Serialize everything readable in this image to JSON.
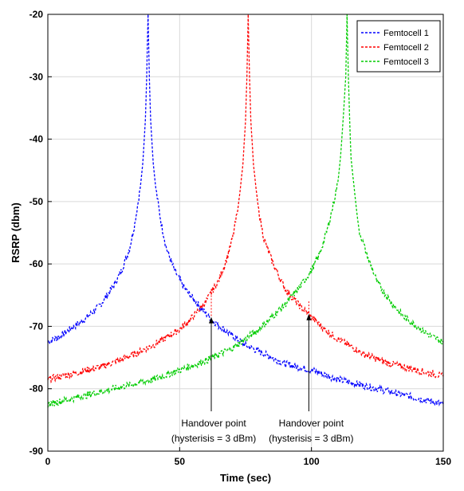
{
  "chart_data": {
    "type": "line",
    "xlabel": "Time (sec)",
    "ylabel": "RSRP (dbm)",
    "xlim": [
      0,
      150
    ],
    "ylim": [
      -90,
      -20
    ],
    "xticks": [
      "0",
      "50",
      "100",
      "150"
    ],
    "yticks": [
      "-20",
      "-30",
      "-40",
      "-50",
      "-60",
      "-70",
      "-80",
      "-90"
    ],
    "grid": true,
    "legend_position": "top-right",
    "line_style": "dashed",
    "noisy": true,
    "series": [
      {
        "name": "Femtocell 1",
        "color": "#0000ff",
        "x": [
          0,
          5,
          10,
          15,
          20,
          25,
          28,
          31,
          33,
          35,
          36,
          37,
          37.5,
          38,
          38.5,
          39,
          40,
          41,
          43,
          45,
          48,
          52,
          56,
          60,
          65,
          70,
          75,
          80,
          90,
          100,
          110,
          120,
          130,
          140,
          150
        ],
        "y": [
          -72.5,
          -71.5,
          -70,
          -68.5,
          -66.5,
          -63.5,
          -61,
          -57.5,
          -53.5,
          -48,
          -44,
          -37,
          -30,
          -20,
          -30,
          -37,
          -44,
          -48,
          -53.5,
          -57.5,
          -61,
          -64,
          -66,
          -68,
          -70,
          -71.5,
          -73,
          -74,
          -76,
          -77,
          -78.5,
          -79.5,
          -80.5,
          -81.5,
          -82.5
        ]
      },
      {
        "name": "Femtocell 2",
        "color": "#ff0000",
        "x": [
          0,
          10,
          20,
          30,
          40,
          50,
          55,
          60,
          65,
          68,
          70,
          72,
          73,
          74,
          75,
          75.5,
          76,
          76.5,
          77,
          78,
          79,
          80,
          82,
          85,
          90,
          95,
          100,
          105,
          110,
          120,
          130,
          140,
          150
        ],
        "y": [
          -78.5,
          -77.5,
          -76.5,
          -75,
          -73,
          -70.5,
          -68.5,
          -66,
          -62.5,
          -59,
          -56,
          -51.5,
          -48,
          -44,
          -37,
          -30,
          -20,
          -30,
          -37,
          -44,
          -48,
          -51.5,
          -56,
          -59.5,
          -64,
          -66.5,
          -68.5,
          -70.5,
          -72,
          -74.5,
          -76,
          -77,
          -78
        ]
      },
      {
        "name": "Femtocell 3",
        "color": "#00cc00",
        "x": [
          0,
          10,
          20,
          30,
          40,
          50,
          60,
          70,
          75,
          80,
          85,
          90,
          95,
          100,
          103,
          106,
          108,
          110,
          111,
          112,
          113,
          113.5,
          114,
          114.5,
          115,
          116,
          117,
          118,
          121,
          125,
          130,
          135,
          140,
          145,
          150
        ],
        "y": [
          -82.5,
          -81.5,
          -80.5,
          -79.5,
          -78.5,
          -77,
          -75.5,
          -73.5,
          -72,
          -70.5,
          -68.5,
          -66.5,
          -64,
          -61,
          -58.5,
          -54.5,
          -51,
          -47,
          -43,
          -37,
          -30,
          -20,
          -30,
          -37,
          -43,
          -47,
          -51,
          -54.5,
          -58.5,
          -63,
          -66,
          -68.5,
          -70,
          -71.5,
          -72.5
        ]
      }
    ],
    "annotations": [
      {
        "line1": "Handover point",
        "line2": "(hysterisis = 3 dBm)",
        "x": 62,
        "y_top": -64,
        "y_arrow": -68.5
      },
      {
        "line1": "Handover point",
        "line2": "(hysterisis = 3 dBm)",
        "x": 99,
        "y_top": -66,
        "y_arrow": -68
      }
    ]
  }
}
